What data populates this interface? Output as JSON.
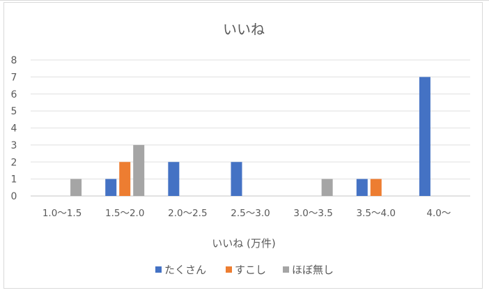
{
  "chart_data": {
    "type": "bar",
    "title": "いいね",
    "xlabel": "いいね (万件)",
    "ylabel": "",
    "ylim": [
      0,
      8
    ],
    "yticks": [
      0,
      1,
      2,
      3,
      4,
      5,
      6,
      7,
      8
    ],
    "grid": true,
    "legend_position": "bottom",
    "categories": [
      "1.0〜1.5",
      "1.5〜2.0",
      "2.0〜2.5",
      "2.5〜3.0",
      "3.0〜3.5",
      "3.5〜4.0",
      "4.0〜"
    ],
    "series": [
      {
        "name": "たくさん",
        "color": "#4472c4",
        "values": [
          0,
          1,
          2,
          2,
          0,
          1,
          7
        ]
      },
      {
        "name": "すこし",
        "color": "#ed7d31",
        "values": [
          0,
          2,
          0,
          0,
          0,
          1,
          0
        ]
      },
      {
        "name": "ほぼ無し",
        "color": "#a5a5a5",
        "values": [
          1,
          3,
          0,
          0,
          1,
          0,
          0
        ]
      }
    ]
  }
}
